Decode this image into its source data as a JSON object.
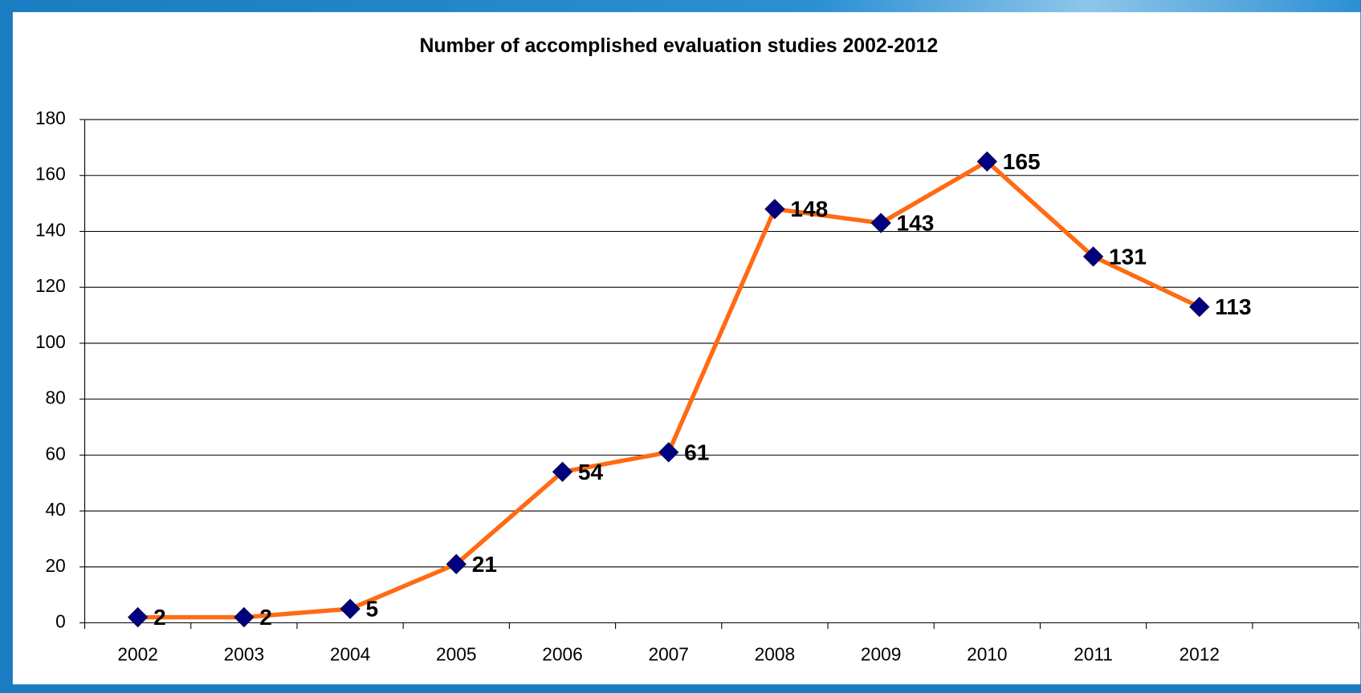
{
  "chart_data": {
    "type": "line",
    "title": "Number of accomplished evaluation studies 2002-2012",
    "categories": [
      "2002",
      "2003",
      "2004",
      "2005",
      "2006",
      "2007",
      "2008",
      "2009",
      "2010",
      "2011",
      "2012",
      null
    ],
    "series": [
      {
        "name": null,
        "color": "#ff6a13",
        "marker_color": "#000080",
        "values": [
          2,
          2,
          5,
          21,
          54,
          61,
          148,
          143,
          165,
          131,
          113,
          null
        ]
      }
    ],
    "ylim": [
      0,
      180
    ],
    "yticks": [
      0,
      20,
      40,
      60,
      80,
      100,
      120,
      140,
      160,
      180
    ],
    "grid": true
  }
}
